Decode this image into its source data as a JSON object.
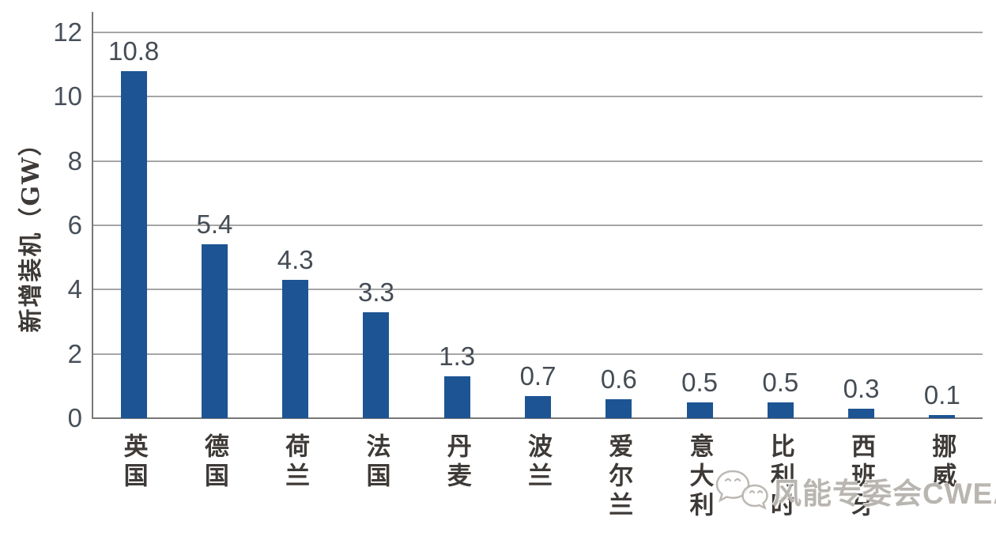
{
  "page": {
    "background": "#ffffff"
  },
  "chart_data": {
    "type": "bar",
    "title": "",
    "xlabel": "",
    "ylabel": "新增装机（GW）",
    "categories": [
      "英国",
      "德国",
      "荷兰",
      "法国",
      "丹麦",
      "波兰",
      "爱尔兰",
      "意大利",
      "比利时",
      "西班牙",
      "挪威"
    ],
    "values": [
      10.8,
      5.4,
      4.3,
      3.3,
      1.3,
      0.7,
      0.6,
      0.5,
      0.5,
      0.3,
      0.1
    ],
    "value_labels": [
      "10.8",
      "5.4",
      "4.3",
      "3.3",
      "1.3",
      "0.7",
      "0.6",
      "0.5",
      "0.5",
      "0.3",
      "0.1"
    ],
    "yticks": [
      0,
      2,
      4,
      6,
      8,
      10,
      12
    ],
    "ylim": [
      0,
      12
    ],
    "grid": true,
    "legend_position": "none",
    "bar_color": "#1d5493"
  },
  "watermark": {
    "icon": "wechat-icon",
    "text": "风能专委会CWEA"
  },
  "colors": {
    "bar": "#1d5493",
    "gridline": "#a5a5a5",
    "axis": "#787878",
    "tick_label": "#47505a",
    "value_label": "#454c54",
    "category_label": "#3e3a37",
    "watermark": "#9e9892"
  }
}
